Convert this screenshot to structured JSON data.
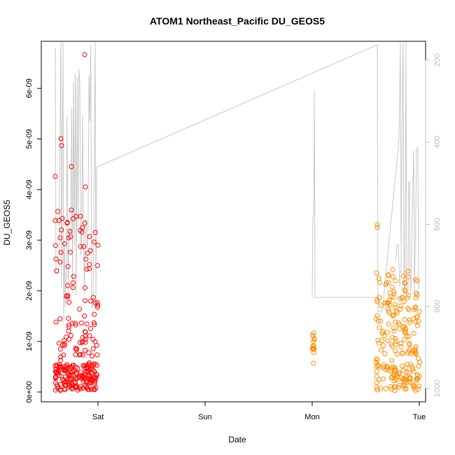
{
  "chart_data": {
    "type": "scatter",
    "title": "ATOM1 Northeast_Pacific DU_GEOS5",
    "xlabel": "Date",
    "ylabel": "DU_GEOS5",
    "x_ticks": [
      "Sat",
      "Sun",
      "Mon",
      "Tue"
    ],
    "y_ticks": [
      "0e+00",
      "1e-09",
      "2e-09",
      "3e-09",
      "4e-09",
      "5e-09",
      "6e-09"
    ],
    "y_tick_values": [
      0,
      1e-09,
      2e-09,
      3e-09,
      4e-09,
      5e-09,
      6e-09
    ],
    "ylim": [
      0,
      6.9e-09
    ],
    "right_axis": {
      "ticks": [
        "200",
        "400",
        "600",
        "800",
        "1000"
      ],
      "tick_values": [
        200,
        400,
        600,
        800,
        1000
      ],
      "range_top_to_bottom": [
        185,
        1030
      ],
      "color": "#bdbdbd"
    },
    "grid": false,
    "colors": {
      "flight1": "#ff0000",
      "flight2": "#ff8c00",
      "pressure": "#c8c8c8"
    }
  }
}
